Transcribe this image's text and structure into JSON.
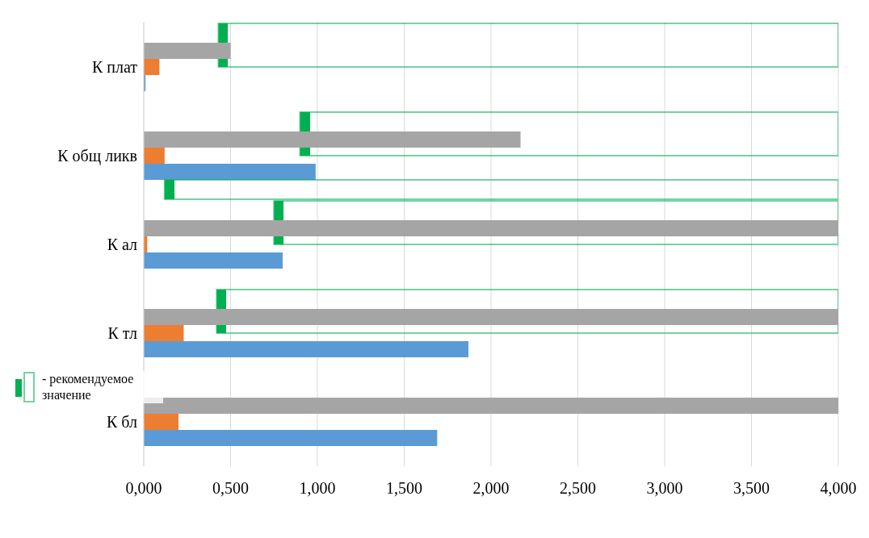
{
  "chart_data": {
    "type": "bar",
    "orientation": "horizontal",
    "categories": [
      "К плат",
      "К общ ликв",
      "К ал",
      "К тл",
      "К бл"
    ],
    "series": [
      {
        "name": "- рекомендуемое значение",
        "color": "#00b050",
        "base": [
          0.43,
          0.9,
          0.75,
          0.42,
          null
        ],
        "values": [
          3.57,
          3.1,
          3.25,
          3.58,
          null
        ]
      },
      {
        "color": "#a5a5a5",
        "values": [
          0.5,
          2.17,
          4.0,
          4.0,
          4.0
        ]
      },
      {
        "color": "#ed7d31",
        "values": [
          0.09,
          0.12,
          0.02,
          0.23,
          0.2
        ]
      },
      {
        "color": "#5b9bd5",
        "values": [
          0.01,
          0.99,
          0.8,
          1.87,
          1.69
        ]
      },
      {
        "color": "#00b050",
        "base": [
          null,
          0.12,
          null,
          null,
          null
        ],
        "values": [
          null,
          3.88,
          null,
          null,
          null
        ]
      }
    ],
    "xlim": [
      0,
      4
    ],
    "xticks": [
      {
        "value": 0,
        "label": "0,000"
      },
      {
        "value": 0.5,
        "label": "0,500"
      },
      {
        "value": 1,
        "label": "1,000"
      },
      {
        "value": 1.5,
        "label": "1,500"
      },
      {
        "value": 2,
        "label": "2,000"
      },
      {
        "value": 2.5,
        "label": "2,500"
      },
      {
        "value": 3,
        "label": "3,000"
      },
      {
        "value": 3.5,
        "label": "3,500"
      },
      {
        "value": 4,
        "label": "4,000"
      }
    ],
    "grid": "x",
    "legend": "left"
  }
}
